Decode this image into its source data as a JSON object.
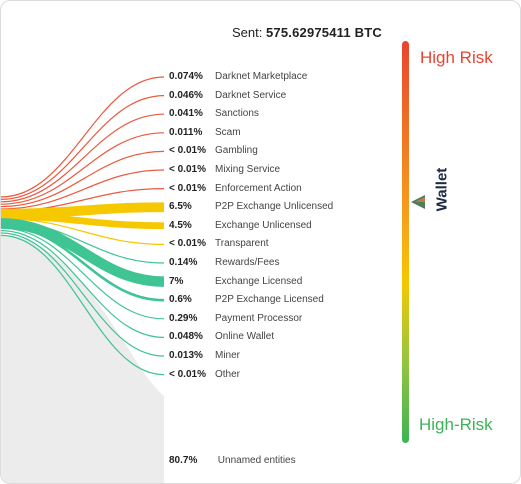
{
  "header": {
    "sent_label": "Sent:",
    "sent_amount": "575.62975411 BTC"
  },
  "categories": [
    {
      "pct": "0.074%",
      "name": "Darknet Marketplace",
      "risk": "high",
      "value": 0.074
    },
    {
      "pct": "0.046%",
      "name": "Darknet Service",
      "risk": "high",
      "value": 0.046
    },
    {
      "pct": "0.041%",
      "name": "Sanctions",
      "risk": "high",
      "value": 0.041
    },
    {
      "pct": "0.011%",
      "name": "Scam",
      "risk": "high",
      "value": 0.011
    },
    {
      "pct": "< 0.01%",
      "name": "Gambling",
      "risk": "high",
      "value": 0.005
    },
    {
      "pct": "< 0.01%",
      "name": "Mixing Service",
      "risk": "high",
      "value": 0.005
    },
    {
      "pct": "< 0.01%",
      "name": "Enforcement Action",
      "risk": "high",
      "value": 0.005
    },
    {
      "pct": "6.5%",
      "name": "P2P Exchange Unlicensed",
      "risk": "medium",
      "value": 6.5
    },
    {
      "pct": "4.5%",
      "name": "Exchange Unlicensed",
      "risk": "medium",
      "value": 4.5
    },
    {
      "pct": "< 0.01%",
      "name": "Transparent",
      "risk": "medium",
      "value": 0.005
    },
    {
      "pct": "0.14%",
      "name": "Rewards/Fees",
      "risk": "low",
      "value": 0.14
    },
    {
      "pct": "7%",
      "name": "Exchange Licensed",
      "risk": "low",
      "value": 7
    },
    {
      "pct": "0.6%",
      "name": "P2P Exchange Licensed",
      "risk": "low",
      "value": 0.6
    },
    {
      "pct": "0.29%",
      "name": "Payment Processor",
      "risk": "low",
      "value": 0.29
    },
    {
      "pct": "0.048%",
      "name": "Online Wallet",
      "risk": "low",
      "value": 0.048
    },
    {
      "pct": "0.013%",
      "name": "Miner",
      "risk": "low",
      "value": 0.013
    },
    {
      "pct": "< 0.01%",
      "name": "Other",
      "risk": "low",
      "value": 0.005
    }
  ],
  "unnamed": {
    "pct": "80.7%",
    "name": "Unnamed entities",
    "value": 80.7
  },
  "risk_scale": {
    "top_label": "High Risk",
    "bottom_label": "High-Risk",
    "wallet_label": "Wallet",
    "top_color": "#e8452f",
    "bottom_color": "#3cb455"
  },
  "colors": {
    "high": "#ea5b3f",
    "medium": "#f5c800",
    "low": "#3fc494",
    "unnamed": "#ececec"
  },
  "icons": {
    "pointer": "triangle-pointer-icon"
  }
}
